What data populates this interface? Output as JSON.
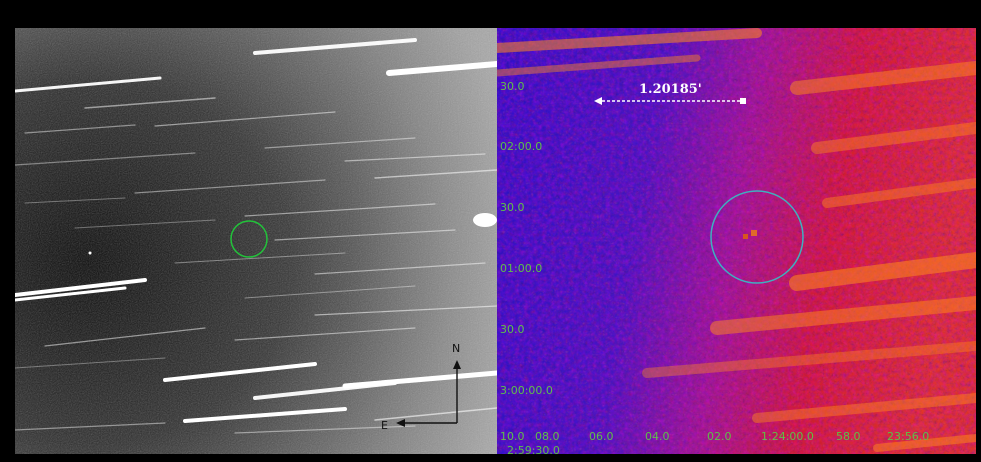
{
  "left_image": {
    "compass": {
      "north_label": "N",
      "east_label": "E"
    },
    "marker_color": "#22c33a"
  },
  "right_image": {
    "scale_bar_label": "1.20185'",
    "marker_color": "#3fb0c0",
    "tick_color": "#5fbf4a",
    "dec_ticks": [
      "30.0",
      "02:00.0",
      "30.0",
      "01:00.0",
      "30.0",
      "3:00:00.0"
    ],
    "ra_ticks": [
      "10.0",
      "08.0",
      "06.0",
      "04.0",
      "02.0",
      "1:24:00.0",
      "58.0",
      "23:56.0"
    ],
    "corner_tick": "2:59:30.0"
  }
}
